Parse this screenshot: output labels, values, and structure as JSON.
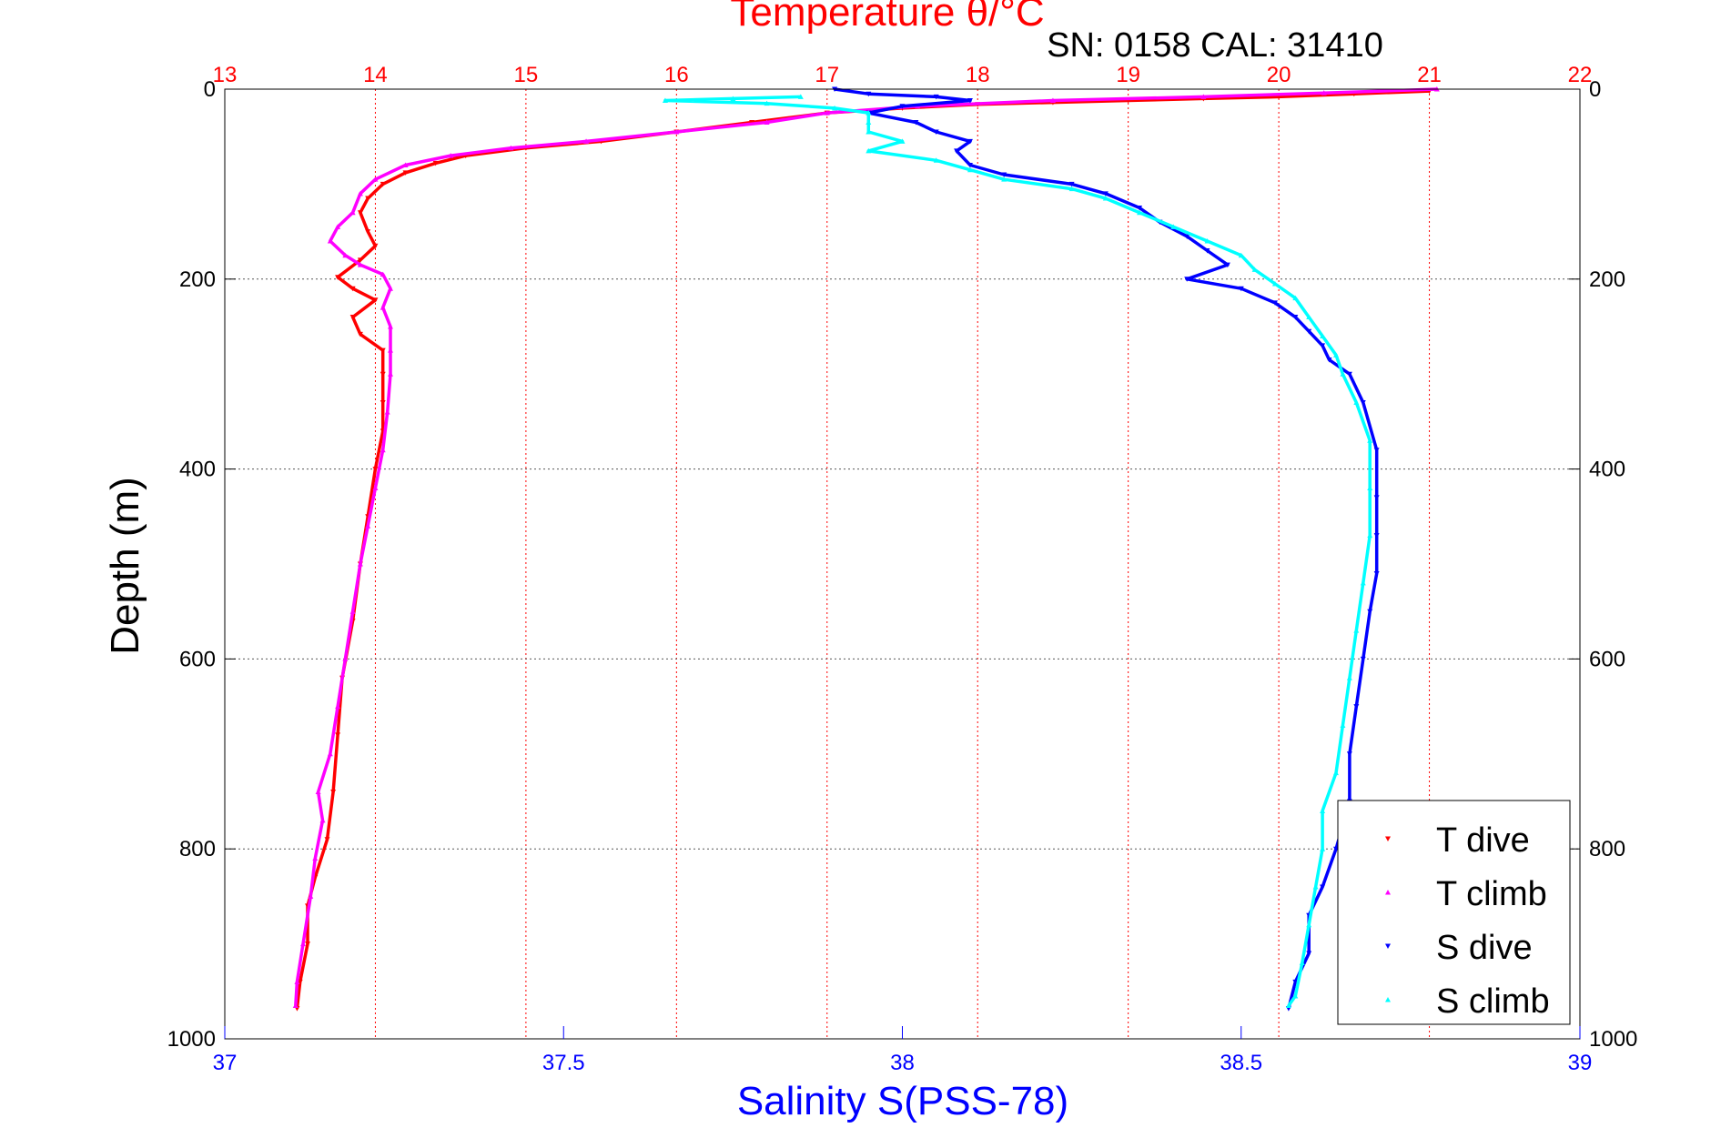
{
  "chart_data": {
    "type": "scatter",
    "title": "Temperature θ/°C",
    "subtitle": "SN: 0158  CAL: 31410",
    "xlabel": "Salinity S(PSS-78)",
    "ylabel": "Depth (m)",
    "top_axis": {
      "label": "Temperature θ/°C",
      "range": [
        13,
        22
      ],
      "ticks": [
        "13",
        "14",
        "15",
        "16",
        "17",
        "18",
        "19",
        "20",
        "21",
        "22"
      ],
      "color": "#ff0000"
    },
    "bottom_axis": {
      "label": "Salinity S(PSS-78)",
      "range": [
        37,
        39
      ],
      "ticks": [
        "37",
        "37.5",
        "38",
        "38.5",
        "39"
      ],
      "color": "#0000ff"
    },
    "y_axis": {
      "label": "Depth (m)",
      "range": [
        0,
        1000
      ],
      "reversed": true,
      "ticks": [
        "0",
        "200",
        "400",
        "600",
        "800",
        "1000"
      ]
    },
    "grid": true,
    "legend_position": "bottom-right",
    "series": [
      {
        "name": "T dive",
        "axis": "temperature",
        "color": "#ff0000",
        "marker": "triangle-down",
        "points": [
          [
            21.0,
            2
          ],
          [
            20.5,
            5
          ],
          [
            20.0,
            8
          ],
          [
            19.5,
            10
          ],
          [
            19.0,
            12
          ],
          [
            18.5,
            14
          ],
          [
            18.0,
            16
          ],
          [
            17.5,
            20
          ],
          [
            17.0,
            25
          ],
          [
            16.5,
            35
          ],
          [
            16.0,
            45
          ],
          [
            15.5,
            55
          ],
          [
            15.0,
            62
          ],
          [
            14.6,
            70
          ],
          [
            14.4,
            78
          ],
          [
            14.2,
            88
          ],
          [
            14.05,
            100
          ],
          [
            13.95,
            115
          ],
          [
            13.9,
            130
          ],
          [
            13.95,
            150
          ],
          [
            14.0,
            165
          ],
          [
            13.9,
            180
          ],
          [
            13.75,
            198
          ],
          [
            13.85,
            210
          ],
          [
            14.0,
            222
          ],
          [
            13.85,
            240
          ],
          [
            13.9,
            258
          ],
          [
            14.05,
            275
          ],
          [
            14.05,
            300
          ],
          [
            14.05,
            330
          ],
          [
            14.05,
            360
          ],
          [
            14.0,
            400
          ],
          [
            13.95,
            450
          ],
          [
            13.9,
            500
          ],
          [
            13.85,
            560
          ],
          [
            13.78,
            620
          ],
          [
            13.75,
            680
          ],
          [
            13.72,
            740
          ],
          [
            13.68,
            790
          ],
          [
            13.6,
            830
          ],
          [
            13.55,
            860
          ],
          [
            13.55,
            900
          ],
          [
            13.5,
            940
          ],
          [
            13.48,
            968
          ]
        ]
      },
      {
        "name": "T climb",
        "axis": "temperature",
        "color": "#ff00ff",
        "marker": "triangle-up",
        "points": [
          [
            21.05,
            0
          ],
          [
            20.3,
            4
          ],
          [
            19.5,
            8
          ],
          [
            18.5,
            12
          ],
          [
            17.6,
            18
          ],
          [
            17.0,
            25
          ],
          [
            16.6,
            35
          ],
          [
            16.0,
            45
          ],
          [
            15.4,
            55
          ],
          [
            14.9,
            62
          ],
          [
            14.5,
            70
          ],
          [
            14.2,
            80
          ],
          [
            14.0,
            95
          ],
          [
            13.9,
            110
          ],
          [
            13.85,
            130
          ],
          [
            13.75,
            145
          ],
          [
            13.7,
            160
          ],
          [
            13.8,
            175
          ],
          [
            13.9,
            185
          ],
          [
            14.05,
            195
          ],
          [
            14.1,
            210
          ],
          [
            14.05,
            230
          ],
          [
            14.1,
            250
          ],
          [
            14.1,
            275
          ],
          [
            14.1,
            300
          ],
          [
            14.08,
            340
          ],
          [
            14.05,
            380
          ],
          [
            14.0,
            420
          ],
          [
            13.95,
            460
          ],
          [
            13.9,
            500
          ],
          [
            13.85,
            550
          ],
          [
            13.8,
            600
          ],
          [
            13.75,
            650
          ],
          [
            13.7,
            700
          ],
          [
            13.62,
            740
          ],
          [
            13.65,
            770
          ],
          [
            13.6,
            810
          ],
          [
            13.57,
            850
          ],
          [
            13.52,
            900
          ],
          [
            13.48,
            940
          ],
          [
            13.47,
            965
          ]
        ]
      },
      {
        "name": "S dive",
        "axis": "salinity",
        "color": "#0000ff",
        "marker": "triangle-down",
        "points": [
          [
            37.9,
            0
          ],
          [
            37.95,
            5
          ],
          [
            38.05,
            8
          ],
          [
            38.1,
            12
          ],
          [
            38.0,
            18
          ],
          [
            37.95,
            25
          ],
          [
            38.02,
            35
          ],
          [
            38.05,
            45
          ],
          [
            38.1,
            55
          ],
          [
            38.08,
            65
          ],
          [
            38.1,
            80
          ],
          [
            38.15,
            90
          ],
          [
            38.25,
            100
          ],
          [
            38.3,
            110
          ],
          [
            38.35,
            125
          ],
          [
            38.38,
            140
          ],
          [
            38.42,
            155
          ],
          [
            38.45,
            170
          ],
          [
            38.48,
            185
          ],
          [
            38.42,
            200
          ],
          [
            38.5,
            210
          ],
          [
            38.55,
            225
          ],
          [
            38.58,
            240
          ],
          [
            38.6,
            255
          ],
          [
            38.62,
            270
          ],
          [
            38.63,
            285
          ],
          [
            38.66,
            300
          ],
          [
            38.68,
            330
          ],
          [
            38.7,
            380
          ],
          [
            38.7,
            430
          ],
          [
            38.7,
            470
          ],
          [
            38.7,
            510
          ],
          [
            38.69,
            550
          ],
          [
            38.68,
            600
          ],
          [
            38.67,
            650
          ],
          [
            38.66,
            700
          ],
          [
            38.66,
            750
          ],
          [
            38.64,
            800
          ],
          [
            38.62,
            840
          ],
          [
            38.6,
            870
          ],
          [
            38.6,
            910
          ],
          [
            38.58,
            940
          ],
          [
            38.57,
            968
          ]
        ]
      },
      {
        "name": "S climb",
        "axis": "salinity",
        "color": "#00ffff",
        "marker": "triangle-up",
        "points": [
          [
            37.85,
            8
          ],
          [
            37.75,
            10
          ],
          [
            37.65,
            12
          ],
          [
            37.8,
            15
          ],
          [
            37.9,
            20
          ],
          [
            37.95,
            25
          ],
          [
            37.95,
            35
          ],
          [
            37.95,
            45
          ],
          [
            38.0,
            55
          ],
          [
            37.95,
            65
          ],
          [
            38.05,
            75
          ],
          [
            38.1,
            85
          ],
          [
            38.15,
            95
          ],
          [
            38.25,
            105
          ],
          [
            38.3,
            115
          ],
          [
            38.35,
            130
          ],
          [
            38.4,
            145
          ],
          [
            38.45,
            160
          ],
          [
            38.5,
            175
          ],
          [
            38.52,
            190
          ],
          [
            38.55,
            205
          ],
          [
            38.58,
            220
          ],
          [
            38.6,
            240
          ],
          [
            38.62,
            260
          ],
          [
            38.64,
            280
          ],
          [
            38.65,
            300
          ],
          [
            38.67,
            330
          ],
          [
            38.69,
            370
          ],
          [
            38.69,
            420
          ],
          [
            38.69,
            470
          ],
          [
            38.68,
            520
          ],
          [
            38.67,
            570
          ],
          [
            38.66,
            620
          ],
          [
            38.65,
            670
          ],
          [
            38.64,
            720
          ],
          [
            38.62,
            760
          ],
          [
            38.62,
            800
          ],
          [
            38.61,
            840
          ],
          [
            38.6,
            880
          ],
          [
            38.59,
            920
          ],
          [
            38.58,
            955
          ],
          [
            38.57,
            965
          ]
        ]
      }
    ]
  }
}
